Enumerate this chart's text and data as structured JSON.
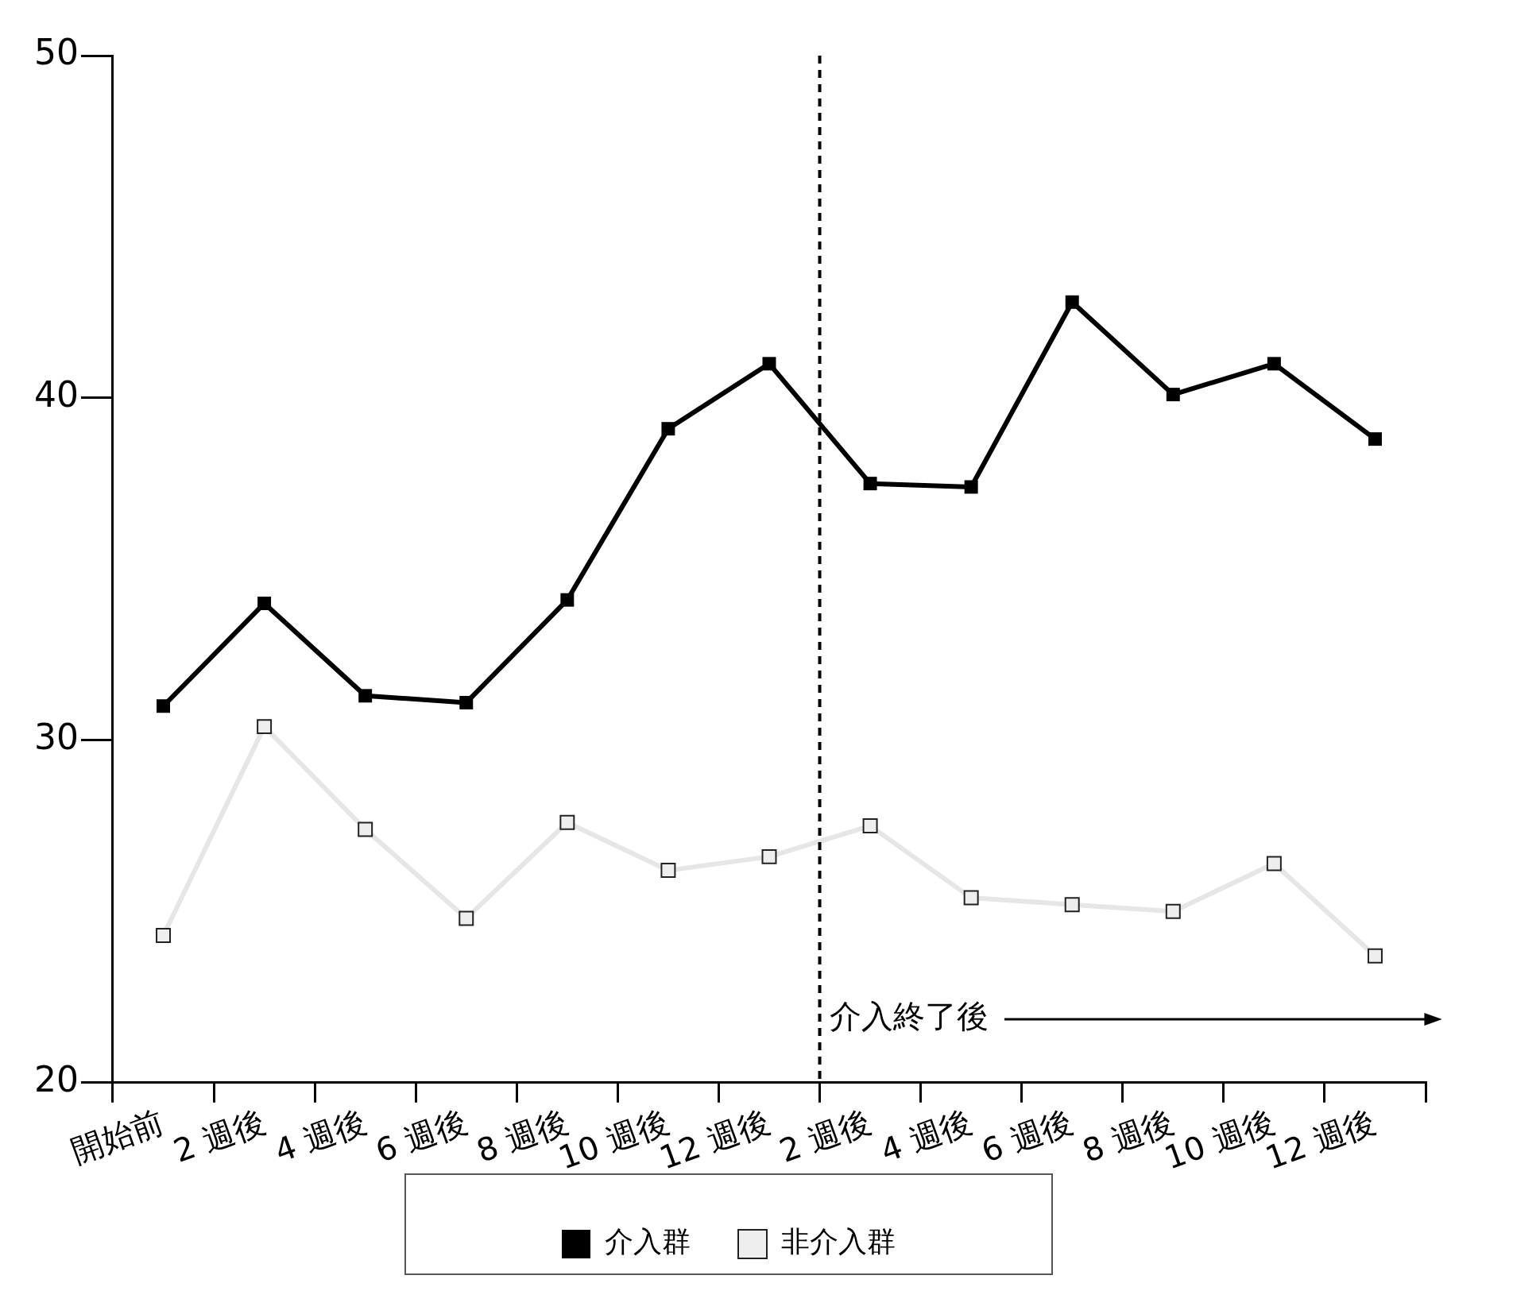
{
  "chart_data": {
    "type": "line",
    "categories": [
      "開始前",
      "2 週後",
      "4 週後",
      "6 週後",
      "8 週後",
      "10 週後",
      "12 週後",
      "2 週後",
      "4 週後",
      "6 週後",
      "8 週後",
      "10 週後",
      "12 週後"
    ],
    "series": [
      {
        "name": "介入群",
        "color": "#000000",
        "values": [
          31.0,
          34.0,
          31.3,
          31.1,
          34.1,
          39.1,
          41.0,
          37.5,
          37.4,
          42.8,
          40.1,
          41.0,
          38.8
        ]
      },
      {
        "name": "非介入群",
        "color": "#e6e6e6",
        "values": [
          24.3,
          30.4,
          27.4,
          24.8,
          27.6,
          26.2,
          26.6,
          27.5,
          25.4,
          25.2,
          25.0,
          26.4,
          23.7
        ]
      }
    ],
    "ylim": [
      20,
      50
    ],
    "yticks": [
      20,
      30,
      40,
      50
    ],
    "annotations": [
      "介入終了後"
    ],
    "marker": "square",
    "line_style": "solid",
    "grid": false,
    "legend": "bottom"
  }
}
